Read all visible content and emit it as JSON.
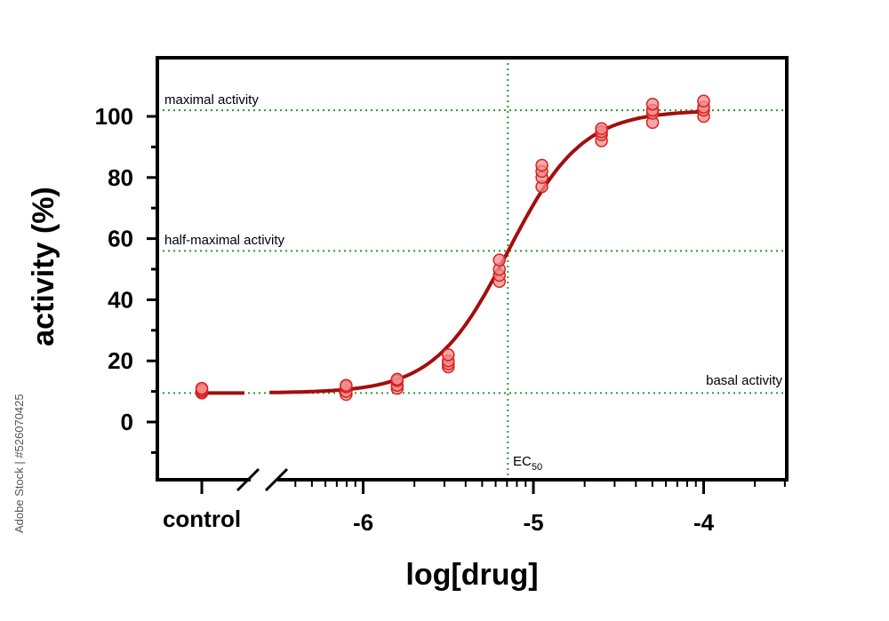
{
  "chart_data": {
    "type": "scatter",
    "xlabel": "log[drug]",
    "ylabel": "activity (%)",
    "ylim": [
      -19,
      109
    ],
    "xlim": [
      -6.8,
      -3.5
    ],
    "y_ticks": [
      "0",
      "20",
      "40",
      "60",
      "80",
      "100"
    ],
    "y_tick_values": [
      0,
      20,
      40,
      60,
      80,
      100
    ],
    "x_ticks": [
      "-6",
      "-5",
      "-4"
    ],
    "x_tick_values": [
      -6,
      -5,
      -4
    ],
    "control_label": "control",
    "annotations": {
      "maximal": "maximal activity",
      "half_maximal": "half-maximal activity",
      "basal": "basal activity",
      "ec50_main": "EC",
      "ec50_sub": "50"
    },
    "reference_lines": {
      "maximal_y": 102,
      "half_maximal_y": 56,
      "basal_y": 9.5,
      "ec50_x": -5.15
    },
    "fit": {
      "bottom": 9.5,
      "top": 102,
      "logEC50": -5.15,
      "hill": 2.0
    },
    "control_points": [
      9.5,
      10,
      10.5,
      11
    ],
    "series": [
      {
        "x": -6.1,
        "y": [
          9,
          10,
          11.5,
          12
        ]
      },
      {
        "x": -5.8,
        "y": [
          11,
          12,
          13.5,
          14
        ]
      },
      {
        "x": -5.5,
        "y": [
          18,
          19,
          20,
          22
        ]
      },
      {
        "x": -5.2,
        "y": [
          46,
          48,
          50,
          53
        ]
      },
      {
        "x": -4.95,
        "y": [
          77,
          80,
          82,
          84
        ]
      },
      {
        "x": -4.6,
        "y": [
          92,
          94,
          95,
          96
        ]
      },
      {
        "x": -4.3,
        "y": [
          98,
          101,
          102,
          104
        ]
      },
      {
        "x": -4.0,
        "y": [
          100,
          102,
          103,
          105
        ]
      }
    ],
    "colors": {
      "curve": "#a50d0d",
      "point_fill": "#f28b8b",
      "point_stroke": "#d62020",
      "guide": "#2a9a2a"
    },
    "grid": false
  },
  "watermark": "Adobe Stock | #526070425"
}
